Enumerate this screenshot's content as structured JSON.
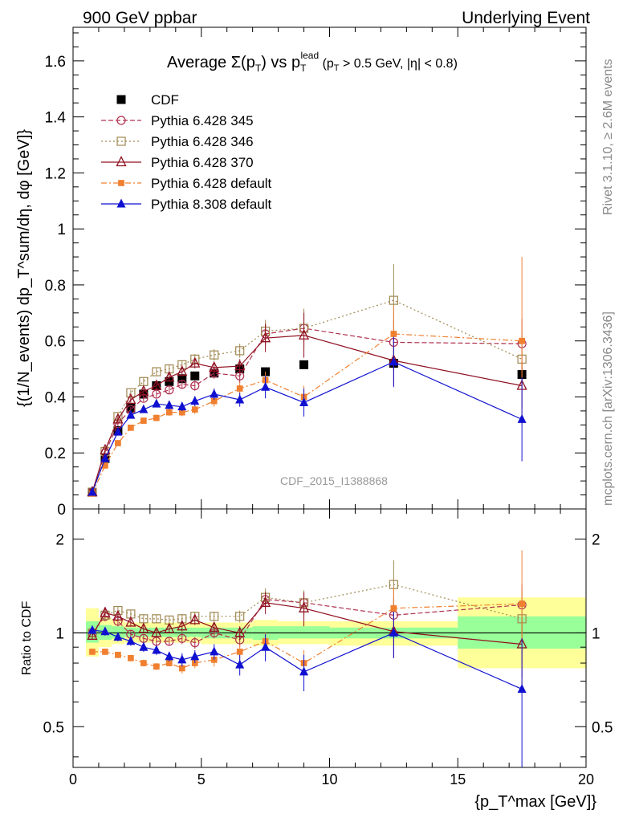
{
  "header": {
    "left": "900 GeV ppbar",
    "right": "Underlying Event"
  },
  "side_labels": {
    "rivet": "Rivet 3.1.10, ≥ 2.6M events",
    "mcplots": "mcplots.cern.ch [arXiv:1306.3436]"
  },
  "watermark": "CDF_2015_I1388868",
  "title": {
    "prefix": "Average Σ(p",
    "sub_t": "T",
    "mid": ") vs p",
    "sup_lead": "lead",
    "suffix": " (p",
    "suffix2": " > 0.5 GeV, |η| < 0.8)"
  },
  "ylabel_main": "{(1/N_events) dp_T^sum/dη, dφ [GeV]}",
  "ylabel_ratio": "Ratio to CDF",
  "xlabel": "{p_T^max [GeV]}",
  "chart_data": [
    {
      "type": "scatter",
      "panel": "main",
      "xlim": [
        0,
        20
      ],
      "ylim": [
        0,
        1.72
      ],
      "xticks": [
        0,
        5,
        10,
        15,
        20
      ],
      "yticks": [
        0,
        0.2,
        0.4,
        0.6,
        0.8,
        1,
        1.2,
        1.4,
        1.6
      ],
      "ytick_labels": [
        "0",
        "0.2",
        "0.4",
        "0.6",
        "0.8",
        "1",
        "1.2",
        "1.4",
        "1.6"
      ],
      "legend_position": "top-left",
      "series": [
        {
          "name": "CDF",
          "color": "#000000",
          "marker": "filled-square",
          "dash": "none",
          "x": [
            0.75,
            1.25,
            1.75,
            2.25,
            2.75,
            3.25,
            3.75,
            4.25,
            4.75,
            5.5,
            6.5,
            7.5,
            9.0,
            12.5,
            17.5
          ],
          "y": [
            0.06,
            0.18,
            0.28,
            0.36,
            0.41,
            0.44,
            0.455,
            0.465,
            0.475,
            0.485,
            0.5,
            0.49,
            0.515,
            0.52,
            0.48
          ],
          "err": [
            0.005,
            0.005,
            0.006,
            0.006,
            0.006,
            0.007,
            0.007,
            0.008,
            0.008,
            0.008,
            0.01,
            0.012,
            0.015,
            0.02,
            0.025
          ]
        },
        {
          "name": "Pythia 6.428 345",
          "color": "#b03050",
          "marker": "open-circle",
          "dash": "6,3",
          "x": [
            0.75,
            1.25,
            1.75,
            2.25,
            2.75,
            3.25,
            3.75,
            4.25,
            4.75,
            5.5,
            6.5,
            7.5,
            9.0,
            12.5,
            17.5
          ],
          "y": [
            0.06,
            0.2,
            0.305,
            0.355,
            0.395,
            0.41,
            0.425,
            0.445,
            0.44,
            0.485,
            0.475,
            0.625,
            0.645,
            0.595,
            0.59
          ],
          "err": [
            0.005,
            0.008,
            0.01,
            0.01,
            0.012,
            0.012,
            0.014,
            0.016,
            0.018,
            0.02,
            0.025,
            0.04,
            0.06,
            0.08,
            0.09
          ]
        },
        {
          "name": "Pythia 6.428 346",
          "color": "#a08850",
          "marker": "open-square",
          "dash": "2,3",
          "x": [
            0.75,
            1.25,
            1.75,
            2.25,
            2.75,
            3.25,
            3.75,
            4.25,
            4.75,
            5.5,
            6.5,
            7.5,
            9.0,
            12.5,
            17.5
          ],
          "y": [
            0.06,
            0.205,
            0.33,
            0.415,
            0.455,
            0.49,
            0.5,
            0.515,
            0.535,
            0.55,
            0.565,
            0.635,
            0.645,
            0.745,
            0.535
          ],
          "err": [
            0.005,
            0.008,
            0.01,
            0.01,
            0.012,
            0.012,
            0.014,
            0.016,
            0.018,
            0.02,
            0.025,
            0.04,
            0.07,
            0.13,
            0.1
          ]
        },
        {
          "name": "Pythia 6.428 370",
          "color": "#901020",
          "marker": "open-triangle",
          "dash": "none",
          "x": [
            0.75,
            1.25,
            1.75,
            2.25,
            2.75,
            3.25,
            3.75,
            4.25,
            4.75,
            5.5,
            6.5,
            7.5,
            9.0,
            12.5,
            17.5
          ],
          "y": [
            0.06,
            0.21,
            0.32,
            0.39,
            0.42,
            0.44,
            0.47,
            0.49,
            0.52,
            0.505,
            0.51,
            0.61,
            0.62,
            0.53,
            0.44
          ],
          "err": [
            0.005,
            0.008,
            0.01,
            0.01,
            0.012,
            0.012,
            0.014,
            0.016,
            0.018,
            0.02,
            0.025,
            0.05,
            0.08,
            0.09,
            0.08
          ]
        },
        {
          "name": "Pythia 6.428 default",
          "color": "#f08030",
          "marker": "filled-square-small",
          "dash": "7,3,2,3",
          "x": [
            0.75,
            1.25,
            1.75,
            2.25,
            2.75,
            3.25,
            3.75,
            4.25,
            4.75,
            5.5,
            6.5,
            7.5,
            9.0,
            12.5,
            17.5
          ],
          "y": [
            0.055,
            0.155,
            0.235,
            0.29,
            0.315,
            0.325,
            0.345,
            0.345,
            0.355,
            0.385,
            0.43,
            0.46,
            0.4,
            0.625,
            0.6
          ],
          "err": [
            0.005,
            0.008,
            0.008,
            0.01,
            0.01,
            0.012,
            0.012,
            0.014,
            0.016,
            0.02,
            0.022,
            0.03,
            0.04,
            0.1,
            0.3
          ]
        },
        {
          "name": "Pythia 8.308 default",
          "color": "#1010d0",
          "marker": "filled-triangle",
          "dash": "none",
          "x": [
            0.75,
            1.25,
            1.75,
            2.25,
            2.75,
            3.25,
            3.75,
            4.25,
            4.75,
            5.5,
            6.5,
            7.5,
            9.0,
            12.5,
            17.5
          ],
          "y": [
            0.06,
            0.18,
            0.275,
            0.335,
            0.355,
            0.375,
            0.37,
            0.365,
            0.385,
            0.41,
            0.39,
            0.435,
            0.38,
            0.525,
            0.32
          ],
          "err": [
            0.005,
            0.008,
            0.01,
            0.01,
            0.012,
            0.012,
            0.014,
            0.016,
            0.018,
            0.02,
            0.025,
            0.04,
            0.05,
            0.09,
            0.15
          ]
        }
      ]
    },
    {
      "type": "scatter",
      "panel": "ratio",
      "ylabel": "Ratio to CDF",
      "xlabel": "{p_T^max [GeV]}",
      "xlim": [
        0,
        20
      ],
      "ylim": [
        0.37,
        2.5
      ],
      "yscale": "log",
      "yticks": [
        0.5,
        1,
        2
      ],
      "ytick_labels": [
        "0.5",
        "1",
        "2"
      ],
      "xticks": [
        0,
        5,
        10,
        15,
        20
      ],
      "xtick_labels": [
        "0",
        "5",
        "10",
        "15",
        "20"
      ],
      "reference_line": 1,
      "uncertainty_bands": [
        {
          "x0": 0.5,
          "x1": 1.0,
          "green": [
            0.93,
            1.09
          ],
          "yellow": [
            0.84,
            1.2
          ]
        },
        {
          "x0": 1.0,
          "x1": 1.5,
          "green": [
            0.95,
            1.06
          ],
          "yellow": [
            0.9,
            1.12
          ]
        },
        {
          "x0": 1.5,
          "x1": 2.0,
          "green": [
            0.96,
            1.05
          ],
          "yellow": [
            0.92,
            1.1
          ]
        },
        {
          "x0": 2.0,
          "x1": 5.0,
          "green": [
            0.97,
            1.04
          ],
          "yellow": [
            0.93,
            1.08
          ]
        },
        {
          "x0": 5.0,
          "x1": 7.0,
          "green": [
            0.96,
            1.04
          ],
          "yellow": [
            0.92,
            1.08
          ]
        },
        {
          "x0": 7.0,
          "x1": 8.0,
          "green": [
            0.95,
            1.05
          ],
          "yellow": [
            0.91,
            1.1
          ]
        },
        {
          "x0": 8.0,
          "x1": 10.0,
          "green": [
            0.96,
            1.05
          ],
          "yellow": [
            0.92,
            1.09
          ]
        },
        {
          "x0": 10.0,
          "x1": 15.0,
          "green": [
            0.96,
            1.04
          ],
          "yellow": [
            0.91,
            1.09
          ]
        },
        {
          "x0": 15.0,
          "x1": 20.0,
          "green": [
            0.89,
            1.13
          ],
          "yellow": [
            0.77,
            1.3
          ]
        }
      ],
      "series": [
        {
          "name": "Pythia 6.428 345",
          "x": [
            0.75,
            1.25,
            1.75,
            2.25,
            2.75,
            3.25,
            3.75,
            4.25,
            4.75,
            5.5,
            6.5,
            7.5,
            9.0,
            12.5,
            17.5
          ],
          "y": [
            1.0,
            1.13,
            1.09,
            0.99,
            0.96,
            0.94,
            0.94,
            0.96,
            0.93,
            1.0,
            0.95,
            1.28,
            1.25,
            1.14,
            1.23
          ],
          "err": [
            0.03,
            0.04,
            0.04,
            0.03,
            0.03,
            0.03,
            0.03,
            0.04,
            0.04,
            0.04,
            0.05,
            0.08,
            0.1,
            0.15,
            0.2
          ]
        },
        {
          "name": "Pythia 6.428 346",
          "x": [
            0.75,
            1.25,
            1.75,
            2.25,
            2.75,
            3.25,
            3.75,
            4.25,
            4.75,
            5.5,
            6.5,
            7.5,
            9.0,
            12.5,
            17.5
          ],
          "y": [
            1.0,
            1.14,
            1.18,
            1.15,
            1.11,
            1.11,
            1.1,
            1.11,
            1.13,
            1.13,
            1.13,
            1.3,
            1.25,
            1.43,
            1.11
          ],
          "err": [
            0.03,
            0.04,
            0.04,
            0.03,
            0.03,
            0.03,
            0.03,
            0.04,
            0.04,
            0.04,
            0.05,
            0.09,
            0.12,
            0.28,
            0.25
          ]
        },
        {
          "name": "Pythia 6.428 370",
          "x": [
            0.75,
            1.25,
            1.75,
            2.25,
            2.75,
            3.25,
            3.75,
            4.25,
            4.75,
            5.5,
            6.5,
            7.5,
            9.0,
            12.5,
            17.5
          ],
          "y": [
            0.98,
            1.16,
            1.13,
            1.08,
            1.03,
            1.0,
            1.03,
            1.05,
            1.1,
            1.04,
            1.0,
            1.25,
            1.2,
            1.01,
            0.92
          ],
          "err": [
            0.03,
            0.04,
            0.04,
            0.03,
            0.03,
            0.03,
            0.03,
            0.04,
            0.04,
            0.04,
            0.05,
            0.1,
            0.15,
            0.18,
            0.2
          ]
        },
        {
          "name": "Pythia 6.428 default",
          "x": [
            0.75,
            1.25,
            1.75,
            2.25,
            2.75,
            3.25,
            3.75,
            4.25,
            4.75,
            5.5,
            6.5,
            7.5,
            9.0,
            12.5,
            17.5
          ],
          "y": [
            0.87,
            0.87,
            0.85,
            0.83,
            0.8,
            0.78,
            0.8,
            0.77,
            0.8,
            0.82,
            0.87,
            0.94,
            0.8,
            1.2,
            1.24
          ],
          "err": [
            0.02,
            0.02,
            0.02,
            0.02,
            0.02,
            0.02,
            0.02,
            0.03,
            0.03,
            0.04,
            0.05,
            0.06,
            0.08,
            0.2,
            0.6
          ]
        },
        {
          "name": "Pythia 8.308 default",
          "x": [
            0.75,
            1.25,
            1.75,
            2.25,
            2.75,
            3.25,
            3.75,
            4.25,
            4.75,
            5.5,
            6.5,
            7.5,
            9.0,
            12.5,
            17.5
          ],
          "y": [
            1.02,
            1.01,
            0.97,
            0.94,
            0.9,
            0.88,
            0.84,
            0.82,
            0.84,
            0.87,
            0.79,
            0.9,
            0.75,
            1.0,
            0.66
          ],
          "err": [
            0.03,
            0.03,
            0.03,
            0.03,
            0.03,
            0.03,
            0.03,
            0.04,
            0.04,
            0.05,
            0.06,
            0.09,
            0.1,
            0.17,
            0.3
          ]
        }
      ]
    }
  ]
}
